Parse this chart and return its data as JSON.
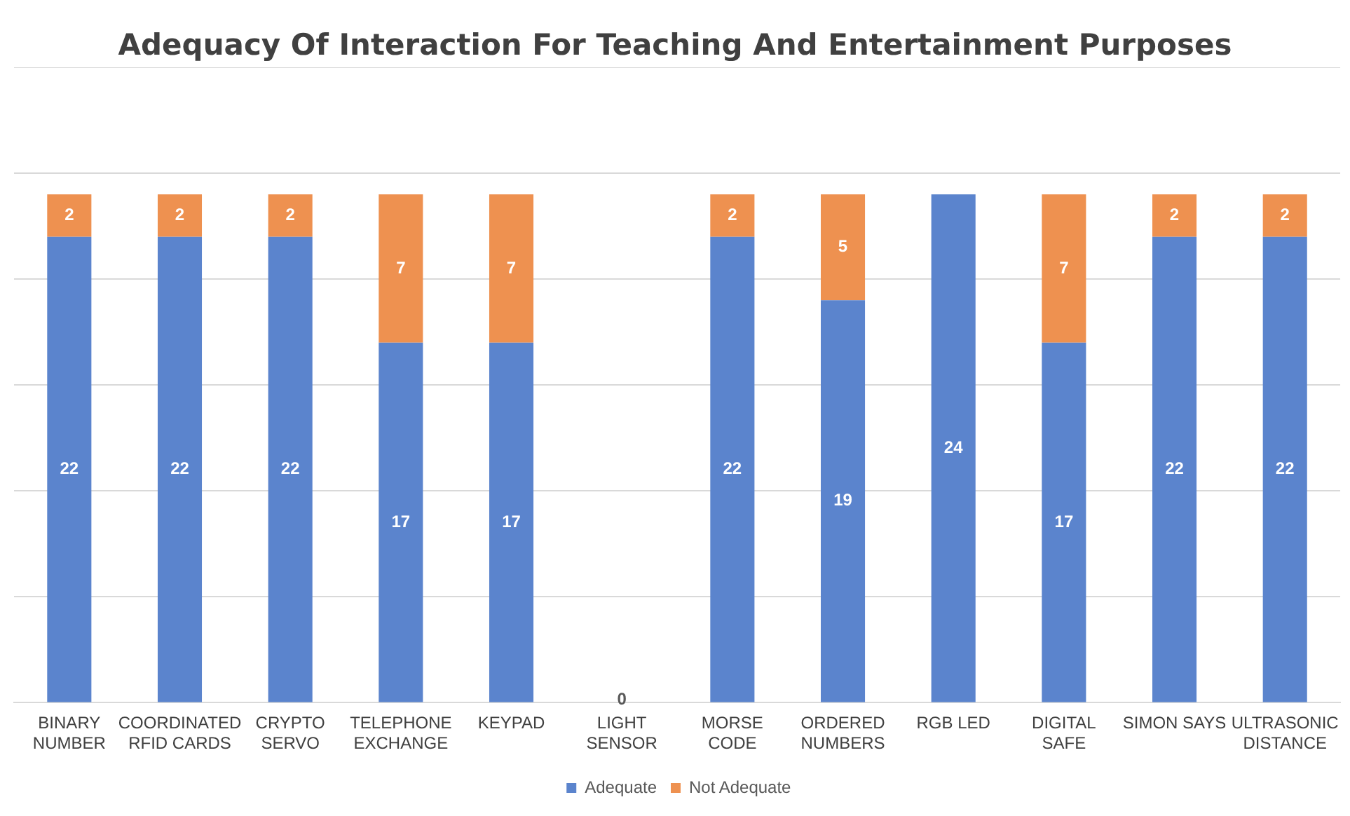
{
  "chart_data": {
    "type": "bar",
    "title": "Adequacy Of Interaction For Teaching And Entertainment Purposes",
    "categories": [
      "BINARY NUMBER",
      "COORDINATED RFID CARDS",
      "CRYPTO SERVO",
      "TELEPHONE EXCHANGE",
      "KEYPAD",
      "LIGHT SENSOR",
      "MORSE CODE",
      "ORDERED NUMBERS",
      "RGB LED",
      "DIGITAL SAFE",
      "SIMON SAYS",
      "ULTRASONIC DISTANCE"
    ],
    "series": [
      {
        "name": "Adequate",
        "color": "#5b84cd",
        "values": [
          22,
          22,
          22,
          17,
          17,
          0,
          22,
          19,
          24,
          17,
          22,
          22
        ]
      },
      {
        "name": "Not Adequate",
        "color": "#ee9150",
        "values": [
          2,
          2,
          2,
          7,
          7,
          null,
          2,
          5,
          null,
          7,
          2,
          2
        ]
      }
    ],
    "stacked": true,
    "data_labels": true,
    "ylim": [
      0,
      30
    ],
    "yticks": [
      {
        "value": 0,
        "label": null
      },
      {
        "value": 5,
        "label": null
      },
      {
        "value": 10,
        "label": null
      },
      {
        "value": 15,
        "label": null
      },
      {
        "value": 20,
        "label": null
      },
      {
        "value": 25,
        "label": null
      },
      {
        "value": 30,
        "label": null
      }
    ],
    "tick_labels": "x",
    "grid": "y",
    "legend": "bottom"
  }
}
